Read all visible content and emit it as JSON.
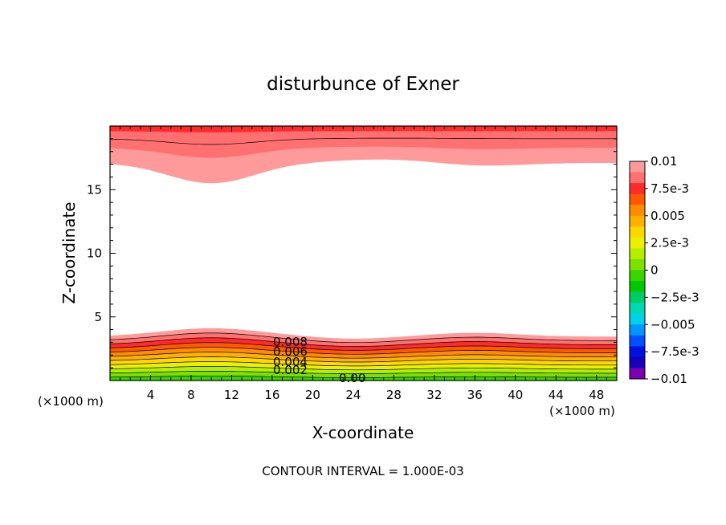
{
  "chart_data": {
    "type": "contour",
    "title": "disturbunce of Exner",
    "xlabel": "X-coordinate",
    "ylabel": "Z-coordinate",
    "x_unit_label_left": "(×1000 m)",
    "x_unit_label_right": "(×1000 m)",
    "footer": "CONTOUR INTERVAL = 1.000E-03",
    "xlim": [
      0,
      50
    ],
    "ylim": [
      0,
      20
    ],
    "x_ticks": [
      4,
      8,
      12,
      16,
      20,
      24,
      28,
      32,
      36,
      40,
      44,
      48
    ],
    "y_ticks": [
      5,
      10,
      15
    ],
    "contour_labels": [
      "0.008",
      "0.006",
      "0.004",
      "0.002",
      "0.00"
    ],
    "colorbar": {
      "tick_labels": [
        "0.01",
        "7.5e-3",
        "0.005",
        "2.5e-3",
        "0",
        "−2.5e-3",
        "−0.005",
        "−7.5e-3",
        "−0.01"
      ],
      "colors": [
        "#ff9a9a",
        "#ff7070",
        "#ff2a2a",
        "#ff5a00",
        "#ff8c00",
        "#ffb000",
        "#ffd700",
        "#eaf000",
        "#b4ee00",
        "#7ce000",
        "#3ad400",
        "#00c800",
        "#00cc66",
        "#00d8b0",
        "#00d0e8",
        "#0096ff",
        "#0050ff",
        "#0010e0",
        "#1800b8",
        "#7a00b0"
      ]
    }
  }
}
